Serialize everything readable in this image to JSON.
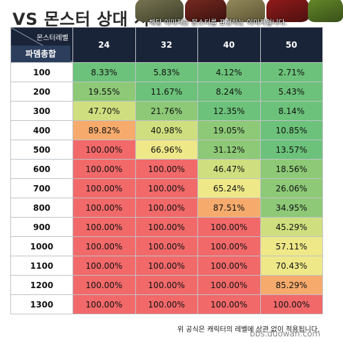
{
  "title": "VS 몬스터 상대 시",
  "top_note": "해당 이미지는 몬스터를 표현하는 이미지입니다.",
  "header": {
    "corner_level_label": "몬스터레벨",
    "corner_damage_label": "파뎀총합",
    "levels": [
      "24",
      "32",
      "40",
      "50"
    ]
  },
  "rows": [
    {
      "dmg": "100",
      "values": [
        "8.33%",
        "5.83%",
        "4.12%",
        "2.71%"
      ]
    },
    {
      "dmg": "200",
      "values": [
        "19.55%",
        "11.67%",
        "8.24%",
        "5.43%"
      ]
    },
    {
      "dmg": "300",
      "values": [
        "47.70%",
        "21.76%",
        "12.35%",
        "8.14%"
      ]
    },
    {
      "dmg": "400",
      "values": [
        "89.82%",
        "40.98%",
        "19.05%",
        "10.85%"
      ]
    },
    {
      "dmg": "500",
      "values": [
        "100.00%",
        "66.96%",
        "31.12%",
        "13.57%"
      ]
    },
    {
      "dmg": "600",
      "values": [
        "100.00%",
        "100.00%",
        "46.47%",
        "18.56%"
      ]
    },
    {
      "dmg": "700",
      "values": [
        "100.00%",
        "100.00%",
        "65.24%",
        "26.06%"
      ]
    },
    {
      "dmg": "800",
      "values": [
        "100.00%",
        "100.00%",
        "87.51%",
        "34.95%"
      ]
    },
    {
      "dmg": "900",
      "values": [
        "100.00%",
        "100.00%",
        "100.00%",
        "45.29%"
      ]
    },
    {
      "dmg": "1000",
      "values": [
        "100.00%",
        "100.00%",
        "100.00%",
        "57.11%"
      ]
    },
    {
      "dmg": "1100",
      "values": [
        "100.00%",
        "100.00%",
        "100.00%",
        "70.43%"
      ]
    },
    {
      "dmg": "1200",
      "values": [
        "100.00%",
        "100.00%",
        "100.00%",
        "85.29%"
      ]
    },
    {
      "dmg": "1300",
      "values": [
        "100.00%",
        "100.00%",
        "100.00%",
        "100.00%"
      ]
    }
  ],
  "bottom_note": "위 공식은 캐릭터의 레벨에 상관 없이 적용됩니다.",
  "watermark": "bbs.duowan.com",
  "colors": {
    "header_bg": "#1a2438",
    "green": "#6cc27a",
    "light_green": "#8dc977",
    "yellow_green": "#cfdf7f",
    "yellow": "#eee889",
    "orange": "#f6ab6c",
    "red": "#f2696a"
  }
}
